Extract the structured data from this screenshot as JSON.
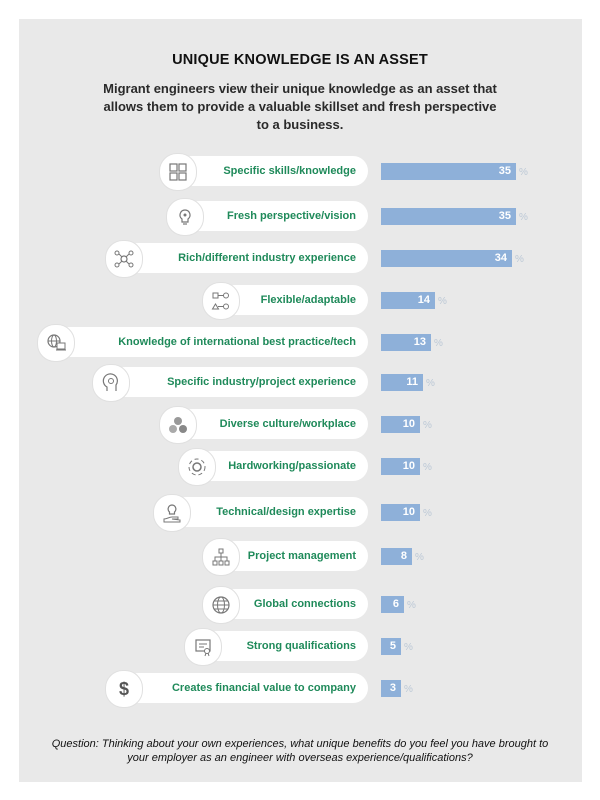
{
  "title": "UNIQUE KNOWLEDGE IS AN ASSET",
  "subtitle": "Migrant engineers view their unique knowledge as an asset that allows them to provide a valuable skillset and fresh perspective to a business.",
  "footnote": "Question: Thinking about your own experiences, what unique benefits do you feel you have brought to your employer as an engineer with overseas experience/qualifications?",
  "colors": {
    "bar": "#8eb0d9",
    "label": "#1f8a5a",
    "panel": "#e9e9e9"
  },
  "chart_data": {
    "type": "bar",
    "orientation": "horizontal",
    "unit": "%",
    "xlim": [
      0,
      35
    ],
    "categories": [
      "Specific skills/knowledge",
      "Fresh perspective/vision",
      "Rich/different industry experience",
      "Flexible/adaptable",
      "Knowledge of international best practice/tech",
      "Specific industry/project experience",
      "Diverse culture/workplace",
      "Hardworking/passionate",
      "Technical/design expertise",
      "Project management",
      "Global connections",
      "Strong qualifications",
      "Creates financial value to company"
    ],
    "values": [
      35,
      35,
      34,
      14,
      13,
      11,
      10,
      10,
      10,
      8,
      6,
      5,
      3
    ],
    "icons": [
      "puzzle-icon",
      "lightbulb-eye-icon",
      "network-icon",
      "flowchart-icon",
      "globe-laptop-icon",
      "head-gear-icon",
      "circles-icon",
      "gear-cycle-icon",
      "hand-lightbulb-icon",
      "hierarchy-icon",
      "globe-icon",
      "certificate-icon",
      "dollar-icon"
    ]
  }
}
